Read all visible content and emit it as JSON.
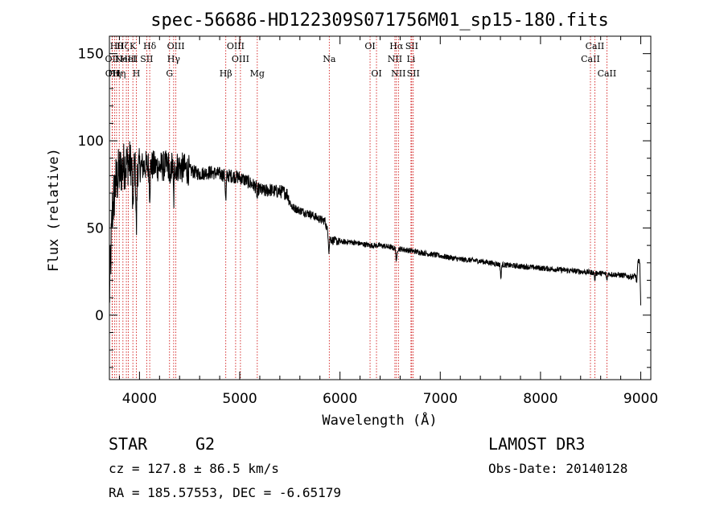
{
  "chart_data": {
    "type": "line",
    "title": "spec-56686-HD122309S071756M01_sp15-180.fits",
    "xlabel": "Wavelength (Å)",
    "ylabel": "Flux (relative)",
    "xlim": [
      3700,
      9100
    ],
    "ylim": [
      -37,
      160
    ],
    "x_ticks": [
      4000,
      5000,
      6000,
      7000,
      8000,
      9000
    ],
    "y_ticks": [
      0,
      50,
      100,
      150
    ],
    "grid": false,
    "series": [
      {
        "name": "Flux",
        "continuum": [
          [
            3700,
            10
          ],
          [
            3730,
            60
          ],
          [
            3760,
            75
          ],
          [
            3800,
            82
          ],
          [
            3850,
            86
          ],
          [
            3900,
            88
          ],
          [
            3950,
            84
          ],
          [
            4000,
            85
          ],
          [
            4100,
            86
          ],
          [
            4200,
            85
          ],
          [
            4300,
            86
          ],
          [
            4400,
            85
          ],
          [
            4500,
            83
          ],
          [
            4600,
            81
          ],
          [
            4700,
            82
          ],
          [
            4800,
            81
          ],
          [
            4860,
            80
          ],
          [
            4900,
            80
          ],
          [
            5000,
            79
          ],
          [
            5100,
            76
          ],
          [
            5200,
            72
          ],
          [
            5250,
            71
          ],
          [
            5300,
            72
          ],
          [
            5350,
            71
          ],
          [
            5400,
            71
          ],
          [
            5470,
            70
          ],
          [
            5520,
            62
          ],
          [
            5600,
            60
          ],
          [
            5700,
            58
          ],
          [
            5800,
            55
          ],
          [
            5850,
            54
          ],
          [
            5890,
            45
          ],
          [
            5920,
            43
          ],
          [
            6000,
            42
          ],
          [
            6100,
            42
          ],
          [
            6200,
            41
          ],
          [
            6300,
            40
          ],
          [
            6400,
            40
          ],
          [
            6500,
            39
          ],
          [
            6560,
            38
          ],
          [
            6600,
            38
          ],
          [
            6700,
            37
          ],
          [
            6800,
            36
          ],
          [
            6900,
            35
          ],
          [
            7000,
            34
          ],
          [
            7200,
            32
          ],
          [
            7400,
            31
          ],
          [
            7600,
            29
          ],
          [
            7800,
            28
          ],
          [
            8000,
            27
          ],
          [
            8200,
            26
          ],
          [
            8400,
            25
          ],
          [
            8600,
            24
          ],
          [
            8800,
            23
          ],
          [
            8900,
            22
          ],
          [
            8960,
            23
          ],
          [
            8975,
            32
          ],
          [
            8990,
            30
          ],
          [
            9000,
            5
          ]
        ],
        "absorption_lines": [
          {
            "x": 3934,
            "depth": 30
          },
          {
            "x": 3969,
            "depth": 35
          },
          {
            "x": 4102,
            "depth": 15
          },
          {
            "x": 4306,
            "depth": 15
          },
          {
            "x": 4341,
            "depth": 20
          },
          {
            "x": 4861,
            "depth": 15
          },
          {
            "x": 5175,
            "depth": 6
          },
          {
            "x": 5890,
            "depth": 8
          },
          {
            "x": 6563,
            "depth": 8
          },
          {
            "x": 7605,
            "depth": 8
          },
          {
            "x": 8542,
            "depth": 4
          },
          {
            "x": 8662,
            "depth": 4
          },
          {
            "x": 8960,
            "depth": 5
          }
        ]
      }
    ],
    "reference_lines": [
      {
        "x": 3727,
        "label": "OII",
        "row": 2
      },
      {
        "x": 3729,
        "label": "OII",
        "row": 3
      },
      {
        "x": 3751,
        "label": "Hη",
        "row": 3
      },
      {
        "x": 3771,
        "label": "Hθ",
        "row": 1
      },
      {
        "x": 3798,
        "label": "Hη",
        "row": 3
      },
      {
        "x": 3835,
        "label": "Hζ",
        "row": 1
      },
      {
        "x": 3869,
        "label": "NeIII",
        "row": 2
      },
      {
        "x": 3889,
        "label": "HeI",
        "row": 2
      },
      {
        "x": 3934,
        "label": "K",
        "row": 1
      },
      {
        "x": 3969,
        "label": "H",
        "row": 3
      },
      {
        "x": 4072,
        "label": "SII",
        "row": 2
      },
      {
        "x": 4102,
        "label": "Hδ",
        "row": 1
      },
      {
        "x": 4300,
        "label": "G",
        "row": 3
      },
      {
        "x": 4341,
        "label": "Hγ",
        "row": 2
      },
      {
        "x": 4363,
        "label": "OIII",
        "row": 1
      },
      {
        "x": 4861,
        "label": "Hβ",
        "row": 3
      },
      {
        "x": 4959,
        "label": "OIII",
        "row": 1
      },
      {
        "x": 5007,
        "label": "OIII",
        "row": 2
      },
      {
        "x": 5175,
        "label": "Mg",
        "row": 3
      },
      {
        "x": 5893,
        "label": "Na",
        "row": 2
      },
      {
        "x": 6300,
        "label": "OI",
        "row": 1
      },
      {
        "x": 6364,
        "label": "OI",
        "row": 3
      },
      {
        "x": 6548,
        "label": "NII",
        "row": 2
      },
      {
        "x": 6563,
        "label": "Hα",
        "row": 1
      },
      {
        "x": 6583,
        "label": "NII",
        "row": 3
      },
      {
        "x": 6708,
        "label": "Li",
        "row": 2
      },
      {
        "x": 6716,
        "label": "SII",
        "row": 1
      },
      {
        "x": 6731,
        "label": "SII",
        "row": 3
      },
      {
        "x": 8498,
        "label": "CaII",
        "row": 2
      },
      {
        "x": 8542,
        "label": "CaII",
        "row": 1
      },
      {
        "x": 8662,
        "label": "CaII",
        "row": 3
      }
    ]
  },
  "info": {
    "object_type": "STAR",
    "subclass": "G2",
    "survey": "LAMOST DR3",
    "redshift": "cz = 127.8 ± 86.5 km/s",
    "obs_date": "Obs-Date: 20140128",
    "coords": "RA = 185.57553, DEC =  -6.65179"
  },
  "colors": {
    "spectrum": "#000000",
    "reference_line": "#cc0000",
    "axes": "#000000",
    "background": "#ffffff"
  }
}
